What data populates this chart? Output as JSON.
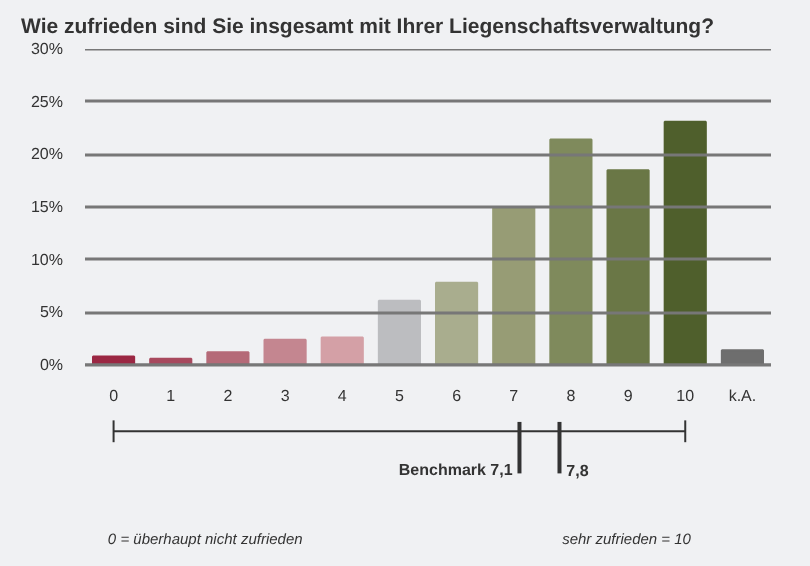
{
  "chart_data": {
    "type": "bar",
    "title": "Wie zufrieden sind Sie insgesamt mit Ihrer Liegenschaftsverwaltung?",
    "x": [
      0,
      1,
      2,
      3,
      4,
      5,
      6,
      7,
      8,
      9,
      10,
      11
    ],
    "values": [
      0.8,
      0.6,
      1.2,
      2.4,
      2.6,
      6.1,
      7.8,
      14.9,
      21.4,
      18.5,
      23.1,
      1.4
    ],
    "colors": [
      "#9b2743",
      "#a8495e",
      "#b56a78",
      "#c48690",
      "#d4a0a6",
      "#bcbdc0",
      "#a9ad8e",
      "#979c75",
      "#7f8a5c",
      "#6a7746",
      "#4f5f2c",
      "#6e6e6e"
    ],
    "xlim": [
      -0.5,
      11.5
    ],
    "xticks": [
      0,
      1,
      2,
      3,
      4,
      5,
      6,
      7,
      8,
      9,
      10,
      {
        "value": 11,
        "label": "k.A."
      }
    ],
    "ylim": [
      0,
      30
    ],
    "yticks": [
      {
        "value": 0,
        "label": "0%"
      },
      {
        "value": 5,
        "label": "5%"
      },
      {
        "value": 10,
        "label": "10%"
      },
      {
        "value": 15,
        "label": "15%"
      },
      {
        "value": 20,
        "label": "20%"
      },
      {
        "value": 25,
        "label": "25%"
      },
      {
        "value": 30,
        "label": "30%"
      }
    ],
    "grid": "y",
    "ref_lines": [
      {
        "axis": "x",
        "value": 7.1,
        "label": "Benchmark 7,1"
      },
      {
        "axis": "x",
        "value": 7.8,
        "label": "7,8"
      }
    ],
    "annotations": [
      "0 = überhaupt nicht zufrieden",
      "sehr zufrieden = 10"
    ]
  }
}
